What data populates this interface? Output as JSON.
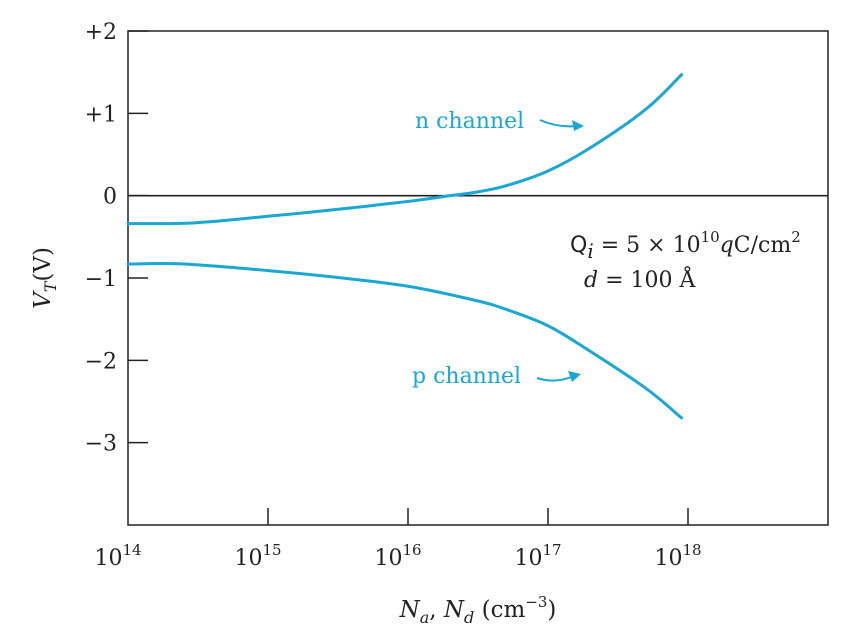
{
  "chart_data": {
    "type": "line",
    "x_scale": "log",
    "xlim": [
      100000000000000.0,
      1e+19
    ],
    "ylim": [
      -4,
      2
    ],
    "x_ticks": [
      100000000000000.0,
      1000000000000000.0,
      1e+16,
      1e+17,
      1e+18
    ],
    "x_tick_labels": [
      {
        "base": "10",
        "exp": "14"
      },
      {
        "base": "10",
        "exp": "15"
      },
      {
        "base": "10",
        "exp": "16"
      },
      {
        "base": "10",
        "exp": "17"
      },
      {
        "base": "10",
        "exp": "18"
      }
    ],
    "y_ticks": [
      2,
      1,
      0,
      -1,
      -2,
      -3
    ],
    "y_tick_labels": [
      "+2",
      "+1",
      "0",
      "−1",
      "−2",
      "−3"
    ],
    "xlabel": {
      "a": "N",
      "a_sub": "a",
      "sep": ", ",
      "b": "N",
      "b_sub": "d",
      "unit": " (cm",
      "unit_exp": "−3",
      "unit_end": ")"
    },
    "ylabel": {
      "main": "V",
      "sub": "T",
      "unit": "(V)"
    },
    "zero_line": true,
    "series": [
      {
        "name": "n channel",
        "color": "#1aa7d3",
        "x": [
          100000000000000.0,
          300000000000000.0,
          1000000000000000.0,
          3000000000000000.0,
          1e+16,
          2e+16,
          3e+16,
          5e+16,
          1e+17,
          2e+17,
          5e+17,
          9e+17
        ],
        "y": [
          -0.34,
          -0.33,
          -0.25,
          -0.17,
          -0.07,
          0.0,
          0.04,
          0.12,
          0.3,
          0.58,
          1.05,
          1.47
        ]
      },
      {
        "name": "p channel",
        "color": "#1aa7d3",
        "x": [
          100000000000000.0,
          250000000000000.0,
          1000000000000000.0,
          3000000000000000.0,
          1e+16,
          3e+16,
          5e+16,
          1e+17,
          2e+17,
          5e+17,
          9e+17
        ],
        "y": [
          -0.83,
          -0.83,
          -0.91,
          -0.99,
          -1.1,
          -1.27,
          -1.38,
          -1.58,
          -1.89,
          -2.34,
          -2.7
        ]
      }
    ],
    "annotations": {
      "line1": {
        "q": "Q",
        "q_sub": "i",
        "eq": " = 5 × 10",
        "exp": "10",
        "q_it": "q",
        "unit": "C/cm",
        "unit_exp": "2"
      },
      "line2": {
        "d": "d",
        "rest": " = 100 Å"
      }
    }
  }
}
